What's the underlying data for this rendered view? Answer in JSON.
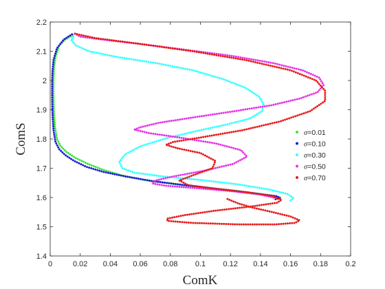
{
  "chart_data": {
    "type": "scatter",
    "title": "",
    "xlabel": "ComK",
    "ylabel": "ComS",
    "xlim": [
      0,
      0.2
    ],
    "ylim": [
      1.4,
      2.2
    ],
    "xticks": [
      0,
      0.02,
      0.04,
      0.06,
      0.08,
      0.1,
      0.12,
      0.14,
      0.16,
      0.18,
      0.2
    ],
    "yticks": [
      1.4,
      1.5,
      1.6,
      1.7,
      1.8,
      1.9,
      2.0,
      2.1,
      2.2
    ],
    "xtick_labels": [
      "0",
      "0.02",
      "0.04",
      "0.06",
      "0.08",
      "0.1",
      "0.12",
      "0.14",
      "0.16",
      "0.18",
      "0.2"
    ],
    "ytick_labels": [
      "1.4",
      "1.5",
      "1.6",
      "1.7",
      "1.8",
      "1.9",
      "2",
      "2.1",
      "2.2"
    ],
    "grid": false,
    "legend_position": "right",
    "series": [
      {
        "name": "=0.01",
        "color": "#33e633",
        "points": [
          [
            0.015,
            2.155
          ],
          [
            0.01,
            2.14
          ],
          [
            0.006,
            2.12
          ],
          [
            0.0035,
            2.08
          ],
          [
            0.0025,
            2.04
          ],
          [
            0.0022,
            2.0
          ],
          [
            0.0022,
            1.96
          ],
          [
            0.0023,
            1.92
          ],
          [
            0.0026,
            1.88
          ],
          [
            0.0032,
            1.84
          ],
          [
            0.0045,
            1.8
          ],
          [
            0.007,
            1.775
          ],
          [
            0.011,
            1.755
          ],
          [
            0.017,
            1.735
          ],
          [
            0.025,
            1.715
          ],
          [
            0.035,
            1.695
          ],
          [
            0.048,
            1.675
          ],
          [
            0.065,
            1.658
          ],
          [
            0.085,
            1.645
          ],
          [
            0.105,
            1.633
          ],
          [
            0.125,
            1.622
          ],
          [
            0.14,
            1.612
          ],
          [
            0.15,
            1.605
          ],
          [
            0.153,
            1.6
          ],
          [
            0.152,
            1.595
          ]
        ]
      },
      {
        "name": "=0.10",
        "color": "#1a1ad9",
        "points": [
          [
            0.0145,
            2.158
          ],
          [
            0.009,
            2.14
          ],
          [
            0.0045,
            2.11
          ],
          [
            0.0022,
            2.07
          ],
          [
            0.0015,
            2.03
          ],
          [
            0.0013,
            1.99
          ],
          [
            0.0013,
            1.95
          ],
          [
            0.0014,
            1.91
          ],
          [
            0.0017,
            1.87
          ],
          [
            0.0022,
            1.83
          ],
          [
            0.0035,
            1.79
          ],
          [
            0.006,
            1.765
          ],
          [
            0.01,
            1.745
          ],
          [
            0.016,
            1.725
          ],
          [
            0.024,
            1.705
          ],
          [
            0.035,
            1.688
          ],
          [
            0.05,
            1.672
          ],
          [
            0.068,
            1.656
          ],
          [
            0.088,
            1.643
          ],
          [
            0.108,
            1.631
          ],
          [
            0.127,
            1.62
          ],
          [
            0.142,
            1.61
          ],
          [
            0.151,
            1.604
          ],
          [
            0.153,
            1.598
          ],
          [
            0.15,
            1.594
          ]
        ]
      },
      {
        "name": "=0.30",
        "color": "#33ffff",
        "points": [
          [
            0.0155,
            2.15
          ],
          [
            0.014,
            2.14
          ],
          [
            0.017,
            2.12
          ],
          [
            0.026,
            2.1
          ],
          [
            0.045,
            2.08
          ],
          [
            0.07,
            2.06
          ],
          [
            0.095,
            2.035
          ],
          [
            0.115,
            2.005
          ],
          [
            0.13,
            1.975
          ],
          [
            0.139,
            1.945
          ],
          [
            0.142,
            1.92
          ],
          [
            0.141,
            1.895
          ],
          [
            0.133,
            1.87
          ],
          [
            0.118,
            1.85
          ],
          [
            0.098,
            1.828
          ],
          [
            0.077,
            1.802
          ],
          [
            0.06,
            1.775
          ],
          [
            0.05,
            1.748
          ],
          [
            0.046,
            1.722
          ],
          [
            0.048,
            1.7
          ],
          [
            0.056,
            1.685
          ],
          [
            0.075,
            1.672
          ],
          [
            0.1,
            1.66
          ],
          [
            0.125,
            1.645
          ],
          [
            0.145,
            1.628
          ],
          [
            0.158,
            1.612
          ],
          [
            0.162,
            1.598
          ],
          [
            0.16,
            1.59
          ]
        ]
      },
      {
        "name": "=0.50",
        "color": "#e633e6",
        "points": [
          [
            0.0165,
            2.16
          ],
          [
            0.02,
            2.15
          ],
          [
            0.035,
            2.14
          ],
          [
            0.06,
            2.125
          ],
          [
            0.09,
            2.105
          ],
          [
            0.12,
            2.085
          ],
          [
            0.148,
            2.06
          ],
          [
            0.168,
            2.035
          ],
          [
            0.179,
            2.01
          ],
          [
            0.182,
            1.985
          ],
          [
            0.178,
            1.96
          ],
          [
            0.166,
            1.938
          ],
          [
            0.147,
            1.915
          ],
          [
            0.12,
            1.893
          ],
          [
            0.093,
            1.872
          ],
          [
            0.072,
            1.855
          ],
          [
            0.06,
            1.84
          ],
          [
            0.056,
            1.832
          ],
          [
            0.066,
            1.82
          ],
          [
            0.086,
            1.805
          ],
          [
            0.11,
            1.785
          ],
          [
            0.127,
            1.762
          ],
          [
            0.131,
            1.74
          ],
          [
            0.122,
            1.715
          ],
          [
            0.103,
            1.692
          ],
          [
            0.082,
            1.672
          ],
          [
            0.07,
            1.658
          ],
          [
            0.068,
            1.648
          ],
          [
            0.077,
            1.64
          ],
          [
            0.097,
            1.632
          ],
          [
            0.12,
            1.622
          ],
          [
            0.14,
            1.61
          ],
          [
            0.15,
            1.598
          ]
        ]
      },
      {
        "name": "=0.70",
        "color": "#e61a1a",
        "points": [
          [
            0.0165,
            2.16
          ],
          [
            0.03,
            2.145
          ],
          [
            0.06,
            2.125
          ],
          [
            0.095,
            2.1
          ],
          [
            0.13,
            2.07
          ],
          [
            0.16,
            2.035
          ],
          [
            0.177,
            2.0
          ],
          [
            0.183,
            1.965
          ],
          [
            0.183,
            1.93
          ],
          [
            0.173,
            1.895
          ],
          [
            0.153,
            1.86
          ],
          [
            0.128,
            1.83
          ],
          [
            0.1,
            1.805
          ],
          [
            0.082,
            1.79
          ],
          [
            0.077,
            1.78
          ],
          [
            0.085,
            1.768
          ],
          [
            0.1,
            1.752
          ],
          [
            0.11,
            1.725
          ],
          [
            0.108,
            1.7
          ],
          [
            0.095,
            1.676
          ],
          [
            0.086,
            1.658
          ],
          [
            0.092,
            1.642
          ],
          [
            0.11,
            1.63
          ],
          [
            0.132,
            1.617
          ],
          [
            0.148,
            1.605
          ],
          [
            0.154,
            1.592
          ],
          [
            0.151,
            1.582
          ],
          [
            0.135,
            1.57
          ],
          [
            0.11,
            1.555
          ],
          [
            0.09,
            1.54
          ],
          [
            0.078,
            1.528
          ],
          [
            0.078,
            1.52
          ],
          [
            0.095,
            1.513
          ],
          [
            0.125,
            1.508
          ],
          [
            0.15,
            1.508
          ],
          [
            0.163,
            1.513
          ],
          [
            0.166,
            1.522
          ],
          [
            0.16,
            1.535
          ],
          [
            0.148,
            1.55
          ],
          [
            0.135,
            1.565
          ],
          [
            0.125,
            1.58
          ],
          [
            0.118,
            1.595
          ]
        ]
      }
    ]
  }
}
